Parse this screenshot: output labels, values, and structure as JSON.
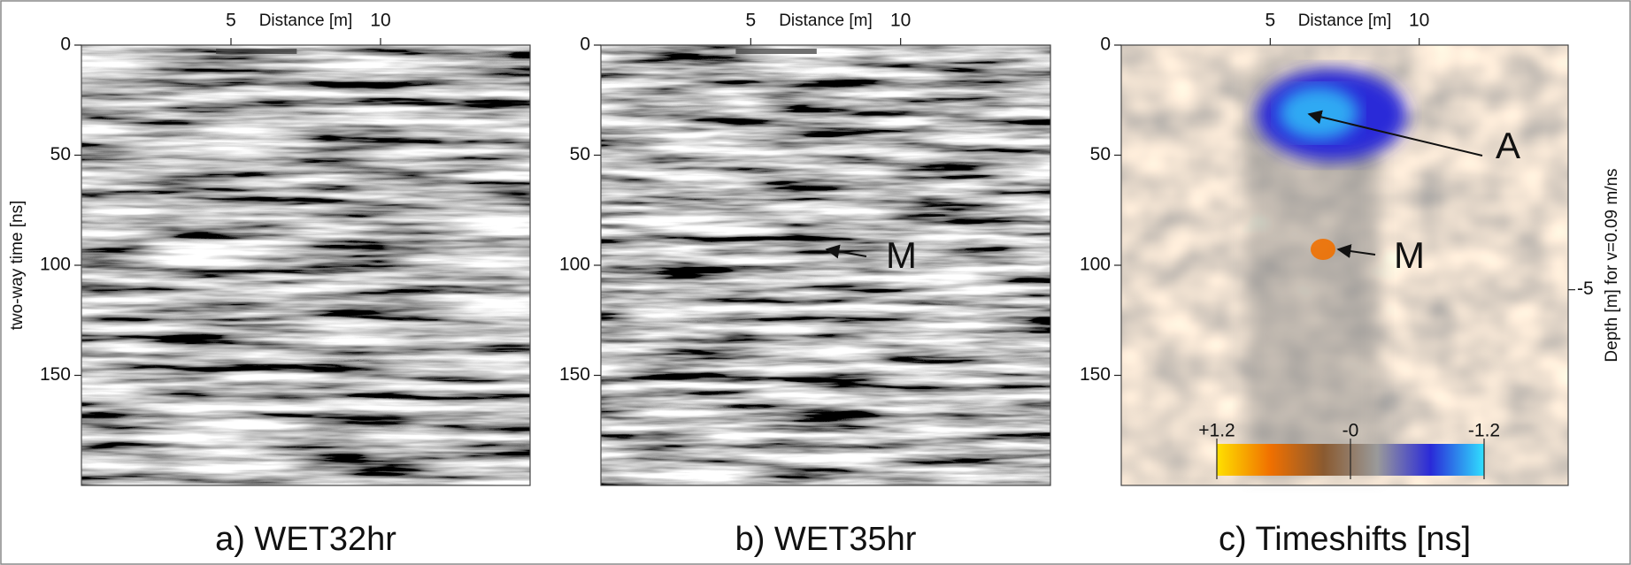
{
  "chart_data": [
    {
      "type": "heatmap",
      "title": "a) WET32hr",
      "xlabel": "Distance [m]",
      "ylabel": "two-way time [ns]",
      "xlim": [
        0,
        15
      ],
      "xticks": [
        5,
        10
      ],
      "ylim": [
        0,
        200
      ],
      "yticks": [
        0,
        50,
        100,
        150
      ],
      "colormap": "gray"
    },
    {
      "type": "heatmap",
      "title": "b) WET35hr",
      "xlabel": "Distance [m]",
      "xlim": [
        0,
        15
      ],
      "xticks": [
        5,
        10
      ],
      "ylim": [
        0,
        200
      ],
      "yticks": [
        0,
        50,
        100,
        150
      ],
      "colormap": "gray",
      "annotations": [
        {
          "text": "M"
        }
      ]
    },
    {
      "type": "heatmap",
      "title": "c) Timeshifts [ns]",
      "xlabel": "Distance [m]",
      "y2label": "Depth [m] for v=0.09 m/ns",
      "xlim": [
        0,
        15
      ],
      "xticks": [
        5,
        10
      ],
      "ylim": [
        0,
        200
      ],
      "yticks": [
        0,
        50,
        100,
        150
      ],
      "y2lim": [
        0,
        -9
      ],
      "y2ticks": [
        -5
      ],
      "colormap": "timeshift",
      "colorbar": {
        "lim": [
          1.2,
          -1.2
        ],
        "ticks": [
          {
            "value": 1.2,
            "label": "+1.2"
          },
          {
            "value": 0,
            "label": "-0"
          },
          -1.2
        ],
        "colors": [
          "#ffe000",
          "#f07000",
          "#8a5a30",
          "#9a9a9a",
          "#2a2ad8",
          "#30e0ff"
        ]
      },
      "annotations": [
        {
          "text": "A"
        },
        {
          "text": "M"
        }
      ]
    }
  ]
}
